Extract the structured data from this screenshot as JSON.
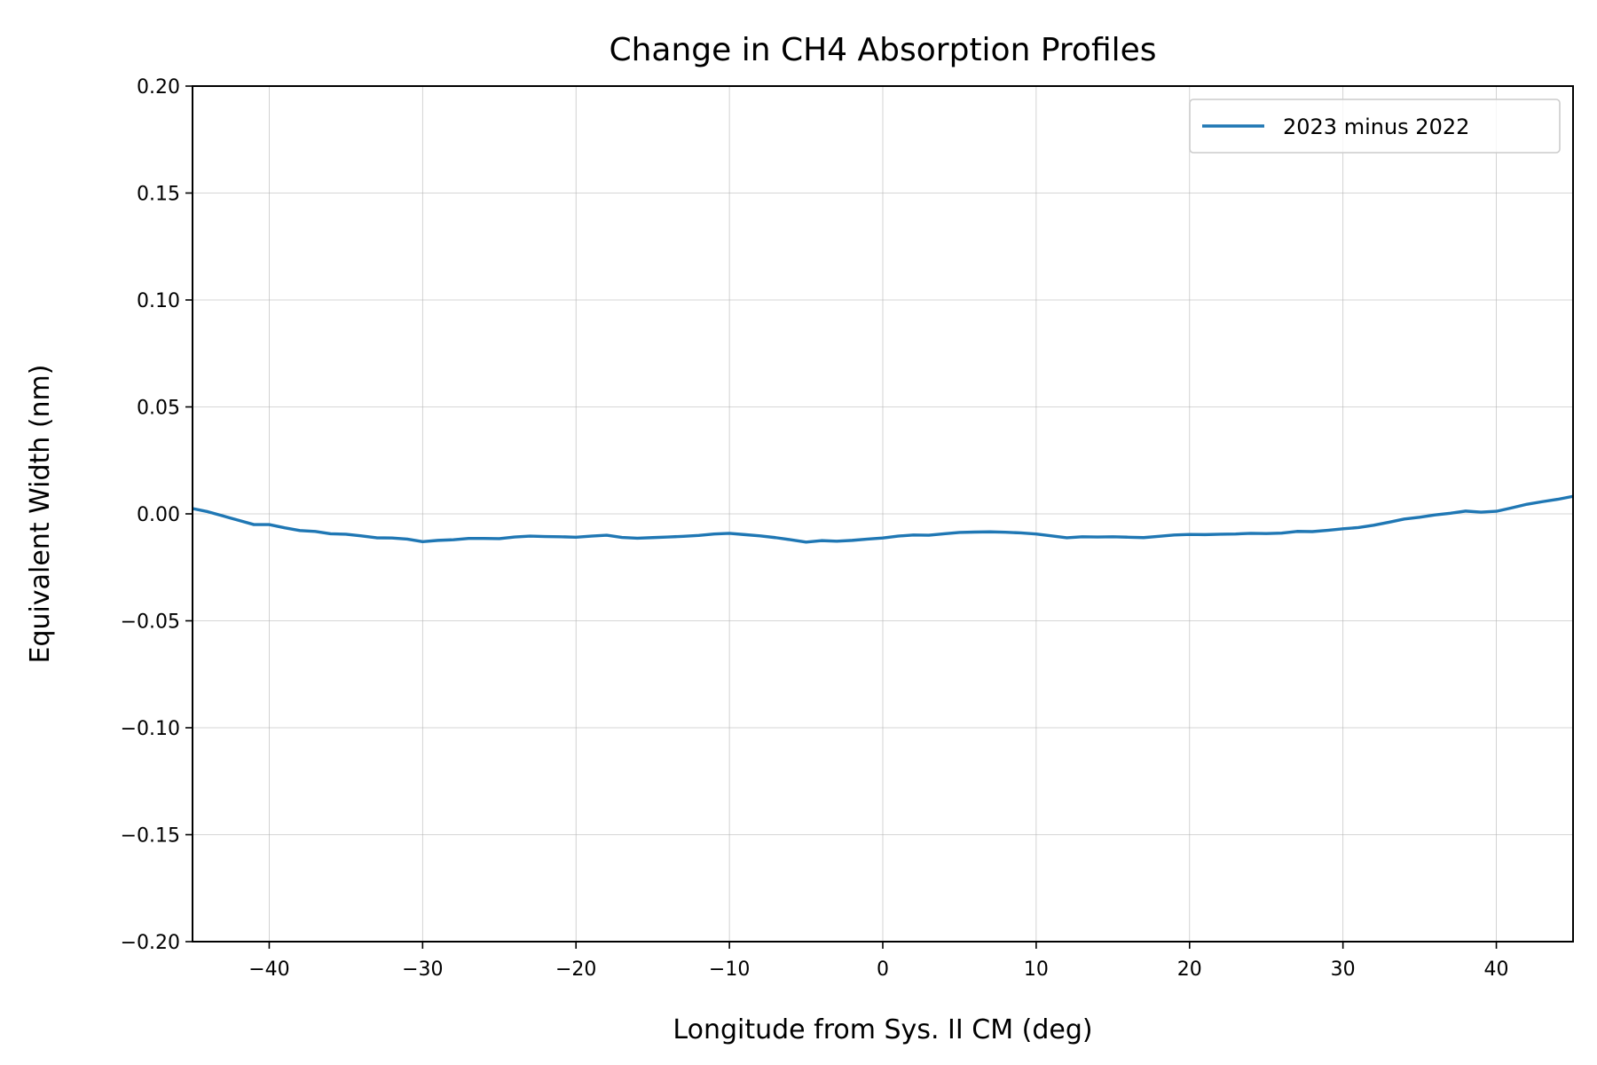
{
  "chart_data": {
    "type": "line",
    "title": "Change in CH4 Absorption Profiles",
    "xlabel": "Longitude from Sys. II CM (deg)",
    "ylabel": "Equivalent Width (nm)",
    "xlim": [
      -45,
      45
    ],
    "ylim": [
      -0.2,
      0.2
    ],
    "xticks": [
      -40,
      -30,
      -20,
      -10,
      0,
      10,
      20,
      30,
      40
    ],
    "xtick_labels": [
      "−40",
      "−30",
      "−20",
      "−10",
      "0",
      "10",
      "20",
      "30",
      "40"
    ],
    "yticks": [
      -0.2,
      -0.15,
      -0.1,
      -0.05,
      0.0,
      0.05,
      0.1,
      0.15,
      0.2
    ],
    "ytick_labels": [
      "−0.20",
      "−0.15",
      "−0.10",
      "−0.05",
      "0.00",
      "0.05",
      "0.10",
      "0.15",
      "0.20"
    ],
    "grid": true,
    "legend_position": "top-right",
    "series": [
      {
        "name": "2023 minus 2022",
        "color": "#1f77b4",
        "x": [
          -45,
          -44,
          -43,
          -42,
          -41,
          -40,
          -39,
          -38,
          -37,
          -36,
          -35,
          -34,
          -33,
          -32,
          -31,
          -30,
          -29,
          -28,
          -27,
          -26,
          -25,
          -24,
          -23,
          -22,
          -21,
          -20,
          -19,
          -18,
          -17,
          -16,
          -15,
          -14,
          -13,
          -12,
          -11,
          -10,
          -9,
          -8,
          -7,
          -6,
          -5,
          -4,
          -3,
          -2,
          -1,
          0,
          1,
          2,
          3,
          4,
          5,
          6,
          7,
          8,
          9,
          10,
          11,
          12,
          13,
          14,
          15,
          16,
          17,
          18,
          19,
          20,
          21,
          22,
          23,
          24,
          25,
          26,
          27,
          28,
          29,
          30,
          31,
          32,
          33,
          34,
          35,
          36,
          37,
          38,
          39,
          40,
          41,
          42,
          43,
          44,
          45
        ],
        "y": [
          0.0025,
          0.001,
          -0.001,
          -0.003,
          -0.005,
          -0.005,
          -0.0065,
          -0.0078,
          -0.0082,
          -0.0093,
          -0.0095,
          -0.0103,
          -0.0112,
          -0.0113,
          -0.0118,
          -0.013,
          -0.0124,
          -0.0121,
          -0.0115,
          -0.0115,
          -0.0116,
          -0.0108,
          -0.0104,
          -0.0106,
          -0.0107,
          -0.0109,
          -0.0104,
          -0.01,
          -0.011,
          -0.0114,
          -0.0111,
          -0.0108,
          -0.0105,
          -0.0101,
          -0.0094,
          -0.0091,
          -0.0097,
          -0.0103,
          -0.0111,
          -0.0121,
          -0.0132,
          -0.0125,
          -0.0128,
          -0.0124,
          -0.0118,
          -0.0113,
          -0.0104,
          -0.0099,
          -0.01,
          -0.0093,
          -0.0087,
          -0.0085,
          -0.0084,
          -0.0086,
          -0.0089,
          -0.0094,
          -0.0103,
          -0.0112,
          -0.0107,
          -0.0108,
          -0.0107,
          -0.0109,
          -0.0111,
          -0.0105,
          -0.0099,
          -0.0096,
          -0.0097,
          -0.0095,
          -0.0094,
          -0.0091,
          -0.0092,
          -0.009,
          -0.0082,
          -0.0083,
          -0.0077,
          -0.007,
          -0.0064,
          -0.0053,
          -0.0039,
          -0.0024,
          -0.0016,
          -0.0005,
          0.0003,
          0.0013,
          0.0008,
          0.0012,
          0.0028,
          0.0045,
          0.0057,
          0.0068,
          0.0082
        ]
      }
    ]
  }
}
